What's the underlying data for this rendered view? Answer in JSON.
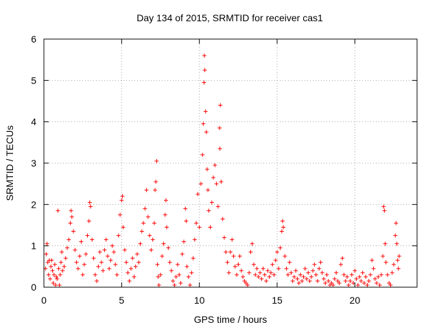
{
  "chart_data": {
    "type": "scatter",
    "title": "Day 134 of 2015, SRMTID for receiver cas1",
    "xlabel": "GPS time / hours",
    "ylabel": "SRMTID / TECUs",
    "xlim": [
      0,
      24
    ],
    "ylim": [
      0,
      6
    ],
    "xticks": [
      0,
      5,
      10,
      15,
      20
    ],
    "yticks": [
      0,
      1,
      2,
      3,
      4,
      5,
      6
    ],
    "grid": true,
    "marker": "+",
    "color": "#ff0000",
    "series": [
      {
        "name": "SRMTID",
        "points": [
          [
            0.1,
            0.45
          ],
          [
            0.15,
            0.8
          ],
          [
            0.2,
            1.05
          ],
          [
            0.25,
            0.6
          ],
          [
            0.3,
            0.3
          ],
          [
            0.35,
            0.65
          ],
          [
            0.4,
            0.2
          ],
          [
            0.45,
            0.5
          ],
          [
            0.5,
            0.65
          ],
          [
            0.55,
            0.4
          ],
          [
            0.6,
            0.1
          ],
          [
            0.65,
            0.3
          ],
          [
            0.7,
            0.55
          ],
          [
            0.75,
            0.05
          ],
          [
            0.8,
            0.25
          ],
          [
            0.85,
            0.2
          ],
          [
            0.9,
            1.85
          ],
          [
            0.95,
            0.45
          ],
          [
            1.0,
            0.05
          ],
          [
            1.05,
            0.3
          ],
          [
            1.1,
            0.6
          ],
          [
            1.15,
            0.85
          ],
          [
            1.2,
            0.4
          ],
          [
            1.3,
            0.5
          ],
          [
            1.4,
            0.7
          ],
          [
            1.5,
            0.95
          ],
          [
            1.6,
            1.15
          ],
          [
            1.7,
            1.55
          ],
          [
            1.75,
            1.85
          ],
          [
            1.8,
            1.7
          ],
          [
            1.9,
            1.35
          ],
          [
            2.0,
            0.9
          ],
          [
            2.1,
            0.6
          ],
          [
            2.2,
            0.45
          ],
          [
            2.3,
            0.75
          ],
          [
            2.4,
            1.1
          ],
          [
            2.5,
            0.3
          ],
          [
            2.6,
            0.55
          ],
          [
            2.7,
            0.8
          ],
          [
            2.8,
            1.25
          ],
          [
            2.9,
            1.6
          ],
          [
            2.95,
            2.05
          ],
          [
            3.0,
            1.95
          ],
          [
            3.1,
            1.15
          ],
          [
            3.2,
            0.7
          ],
          [
            3.3,
            0.3
          ],
          [
            3.4,
            0.15
          ],
          [
            3.5,
            0.5
          ],
          [
            3.6,
            0.85
          ],
          [
            3.7,
            0.6
          ],
          [
            3.8,
            0.4
          ],
          [
            3.9,
            0.9
          ],
          [
            4.0,
            1.15
          ],
          [
            4.1,
            0.75
          ],
          [
            4.2,
            0.45
          ],
          [
            4.3,
            0.65
          ],
          [
            4.4,
            1.0
          ],
          [
            4.5,
            0.85
          ],
          [
            4.6,
            0.55
          ],
          [
            4.7,
            0.3
          ],
          [
            4.8,
            1.25
          ],
          [
            4.9,
            1.75
          ],
          [
            5.0,
            2.1
          ],
          [
            5.05,
            2.2
          ],
          [
            5.1,
            1.45
          ],
          [
            5.2,
            0.9
          ],
          [
            5.3,
            0.6
          ],
          [
            5.4,
            0.35
          ],
          [
            5.5,
            0.15
          ],
          [
            5.6,
            0.45
          ],
          [
            5.7,
            0.7
          ],
          [
            5.8,
            0.25
          ],
          [
            5.9,
            0.5
          ],
          [
            6.0,
            0.8
          ],
          [
            6.1,
            0.6
          ],
          [
            6.2,
            1.05
          ],
          [
            6.3,
            1.35
          ],
          [
            6.4,
            1.55
          ],
          [
            6.5,
            1.9
          ],
          [
            6.6,
            2.35
          ],
          [
            6.7,
            1.7
          ],
          [
            6.8,
            1.25
          ],
          [
            6.9,
            0.9
          ],
          [
            7.0,
            1.15
          ],
          [
            7.1,
            1.55
          ],
          [
            7.15,
            2.35
          ],
          [
            7.2,
            2.55
          ],
          [
            7.25,
            3.05
          ],
          [
            7.3,
            0.55
          ],
          [
            7.35,
            0.25
          ],
          [
            7.4,
            0.05
          ],
          [
            7.5,
            0.3
          ],
          [
            7.6,
            0.75
          ],
          [
            7.7,
            1.05
          ],
          [
            7.8,
            1.75
          ],
          [
            7.85,
            2.1
          ],
          [
            7.9,
            1.45
          ],
          [
            8.0,
            0.95
          ],
          [
            8.1,
            0.6
          ],
          [
            8.2,
            0.4
          ],
          [
            8.3,
            0.15
          ],
          [
            8.4,
            0.05
          ],
          [
            8.5,
            0.25
          ],
          [
            8.6,
            0.55
          ],
          [
            8.7,
            0.3
          ],
          [
            8.8,
            0.1
          ],
          [
            8.9,
            0.8
          ],
          [
            9.0,
            1.1
          ],
          [
            9.1,
            1.9
          ],
          [
            9.15,
            1.6
          ],
          [
            9.2,
            0.5
          ],
          [
            9.3,
            0.25
          ],
          [
            9.4,
            0.05
          ],
          [
            9.5,
            0.35
          ],
          [
            9.6,
            0.7
          ],
          [
            9.7,
            1.15
          ],
          [
            9.8,
            1.55
          ],
          [
            9.9,
            2.25
          ],
          [
            10.0,
            1.45
          ],
          [
            10.1,
            2.5
          ],
          [
            10.2,
            3.2
          ],
          [
            10.25,
            3.95
          ],
          [
            10.3,
            4.95
          ],
          [
            10.32,
            5.6
          ],
          [
            10.35,
            5.25
          ],
          [
            10.4,
            4.25
          ],
          [
            10.45,
            3.75
          ],
          [
            10.5,
            2.85
          ],
          [
            10.55,
            2.35
          ],
          [
            10.6,
            1.85
          ],
          [
            10.7,
            1.45
          ],
          [
            10.8,
            2.05
          ],
          [
            10.9,
            2.65
          ],
          [
            11.0,
            2.95
          ],
          [
            11.1,
            2.5
          ],
          [
            11.2,
            1.95
          ],
          [
            11.3,
            3.85
          ],
          [
            11.32,
            3.35
          ],
          [
            11.35,
            4.4
          ],
          [
            11.4,
            2.55
          ],
          [
            11.5,
            1.65
          ],
          [
            11.6,
            1.2
          ],
          [
            11.7,
            0.85
          ],
          [
            11.8,
            0.6
          ],
          [
            11.9,
            0.35
          ],
          [
            12.0,
            0.85
          ],
          [
            12.1,
            1.15
          ],
          [
            12.2,
            0.75
          ],
          [
            12.3,
            0.5
          ],
          [
            12.4,
            0.3
          ],
          [
            12.5,
            0.55
          ],
          [
            12.6,
            0.75
          ],
          [
            12.7,
            0.4
          ],
          [
            12.8,
            0.25
          ],
          [
            12.9,
            0.15
          ],
          [
            13.0,
            0.1
          ],
          [
            13.1,
            0.05
          ],
          [
            13.2,
            0.35
          ],
          [
            13.3,
            0.85
          ],
          [
            13.4,
            1.05
          ],
          [
            13.5,
            0.55
          ],
          [
            13.6,
            0.3
          ],
          [
            13.7,
            0.45
          ],
          [
            13.8,
            0.25
          ],
          [
            13.9,
            0.35
          ],
          [
            14.0,
            0.2
          ],
          [
            14.1,
            0.45
          ],
          [
            14.2,
            0.3
          ],
          [
            14.3,
            0.15
          ],
          [
            14.4,
            0.4
          ],
          [
            14.5,
            0.25
          ],
          [
            14.6,
            0.35
          ],
          [
            14.7,
            0.55
          ],
          [
            14.8,
            0.3
          ],
          [
            14.9,
            0.65
          ],
          [
            15.0,
            0.85
          ],
          [
            15.1,
            0.45
          ],
          [
            15.2,
            0.95
          ],
          [
            15.3,
            1.35
          ],
          [
            15.35,
            1.6
          ],
          [
            15.4,
            1.45
          ],
          [
            15.5,
            0.75
          ],
          [
            15.6,
            0.45
          ],
          [
            15.7,
            0.3
          ],
          [
            15.8,
            0.6
          ],
          [
            15.9,
            0.35
          ],
          [
            16.0,
            0.15
          ],
          [
            16.1,
            0.25
          ],
          [
            16.2,
            0.4
          ],
          [
            16.3,
            0.2
          ],
          [
            16.4,
            0.1
          ],
          [
            16.5,
            0.3
          ],
          [
            16.6,
            0.15
          ],
          [
            16.7,
            0.25
          ],
          [
            16.8,
            0.45
          ],
          [
            16.9,
            0.2
          ],
          [
            17.0,
            0.35
          ],
          [
            17.1,
            0.15
          ],
          [
            17.2,
            0.25
          ],
          [
            17.3,
            0.4
          ],
          [
            17.4,
            0.55
          ],
          [
            17.5,
            0.3
          ],
          [
            17.6,
            0.15
          ],
          [
            17.7,
            0.45
          ],
          [
            17.8,
            0.6
          ],
          [
            17.9,
            0.35
          ],
          [
            18.0,
            0.2
          ],
          [
            18.1,
            0.1
          ],
          [
            18.2,
            0.3
          ],
          [
            18.3,
            0.15
          ],
          [
            18.4,
            0.05
          ],
          [
            18.5,
            0.1
          ],
          [
            18.6,
            0.05
          ],
          [
            18.7,
            0.2
          ],
          [
            18.8,
            0.35
          ],
          [
            18.9,
            0.15
          ],
          [
            19.0,
            0.1
          ],
          [
            19.1,
            0.55
          ],
          [
            19.2,
            0.7
          ],
          [
            19.3,
            0.3
          ],
          [
            19.4,
            0.15
          ],
          [
            19.5,
            0.25
          ],
          [
            19.6,
            0.05
          ],
          [
            19.7,
            0.15
          ],
          [
            19.8,
            0.3
          ],
          [
            19.9,
            0.1
          ],
          [
            20.0,
            0.4
          ],
          [
            20.1,
            0.2
          ],
          [
            20.2,
            0.05
          ],
          [
            20.3,
            0.25
          ],
          [
            20.4,
            0.15
          ],
          [
            20.5,
            0.35
          ],
          [
            20.6,
            0.1
          ],
          [
            20.7,
            0.25
          ],
          [
            20.8,
            0.05
          ],
          [
            20.9,
            0.15
          ],
          [
            21.0,
            0.3
          ],
          [
            21.1,
            0.65
          ],
          [
            21.2,
            0.45
          ],
          [
            21.3,
            0.2
          ],
          [
            21.4,
            0.1
          ],
          [
            21.5,
            0.25
          ],
          [
            21.6,
            0.05
          ],
          [
            21.7,
            0.3
          ],
          [
            21.8,
            0.75
          ],
          [
            21.85,
            1.95
          ],
          [
            21.9,
            1.85
          ],
          [
            21.95,
            1.05
          ],
          [
            22.0,
            0.6
          ],
          [
            22.1,
            0.3
          ],
          [
            22.2,
            0.1
          ],
          [
            22.3,
            0.05
          ],
          [
            22.4,
            0.35
          ],
          [
            22.5,
            0.55
          ],
          [
            22.6,
            1.25
          ],
          [
            22.65,
            1.55
          ],
          [
            22.7,
            1.05
          ],
          [
            22.75,
            0.65
          ],
          [
            22.8,
            0.45
          ],
          [
            22.85,
            0.75
          ]
        ]
      }
    ]
  }
}
